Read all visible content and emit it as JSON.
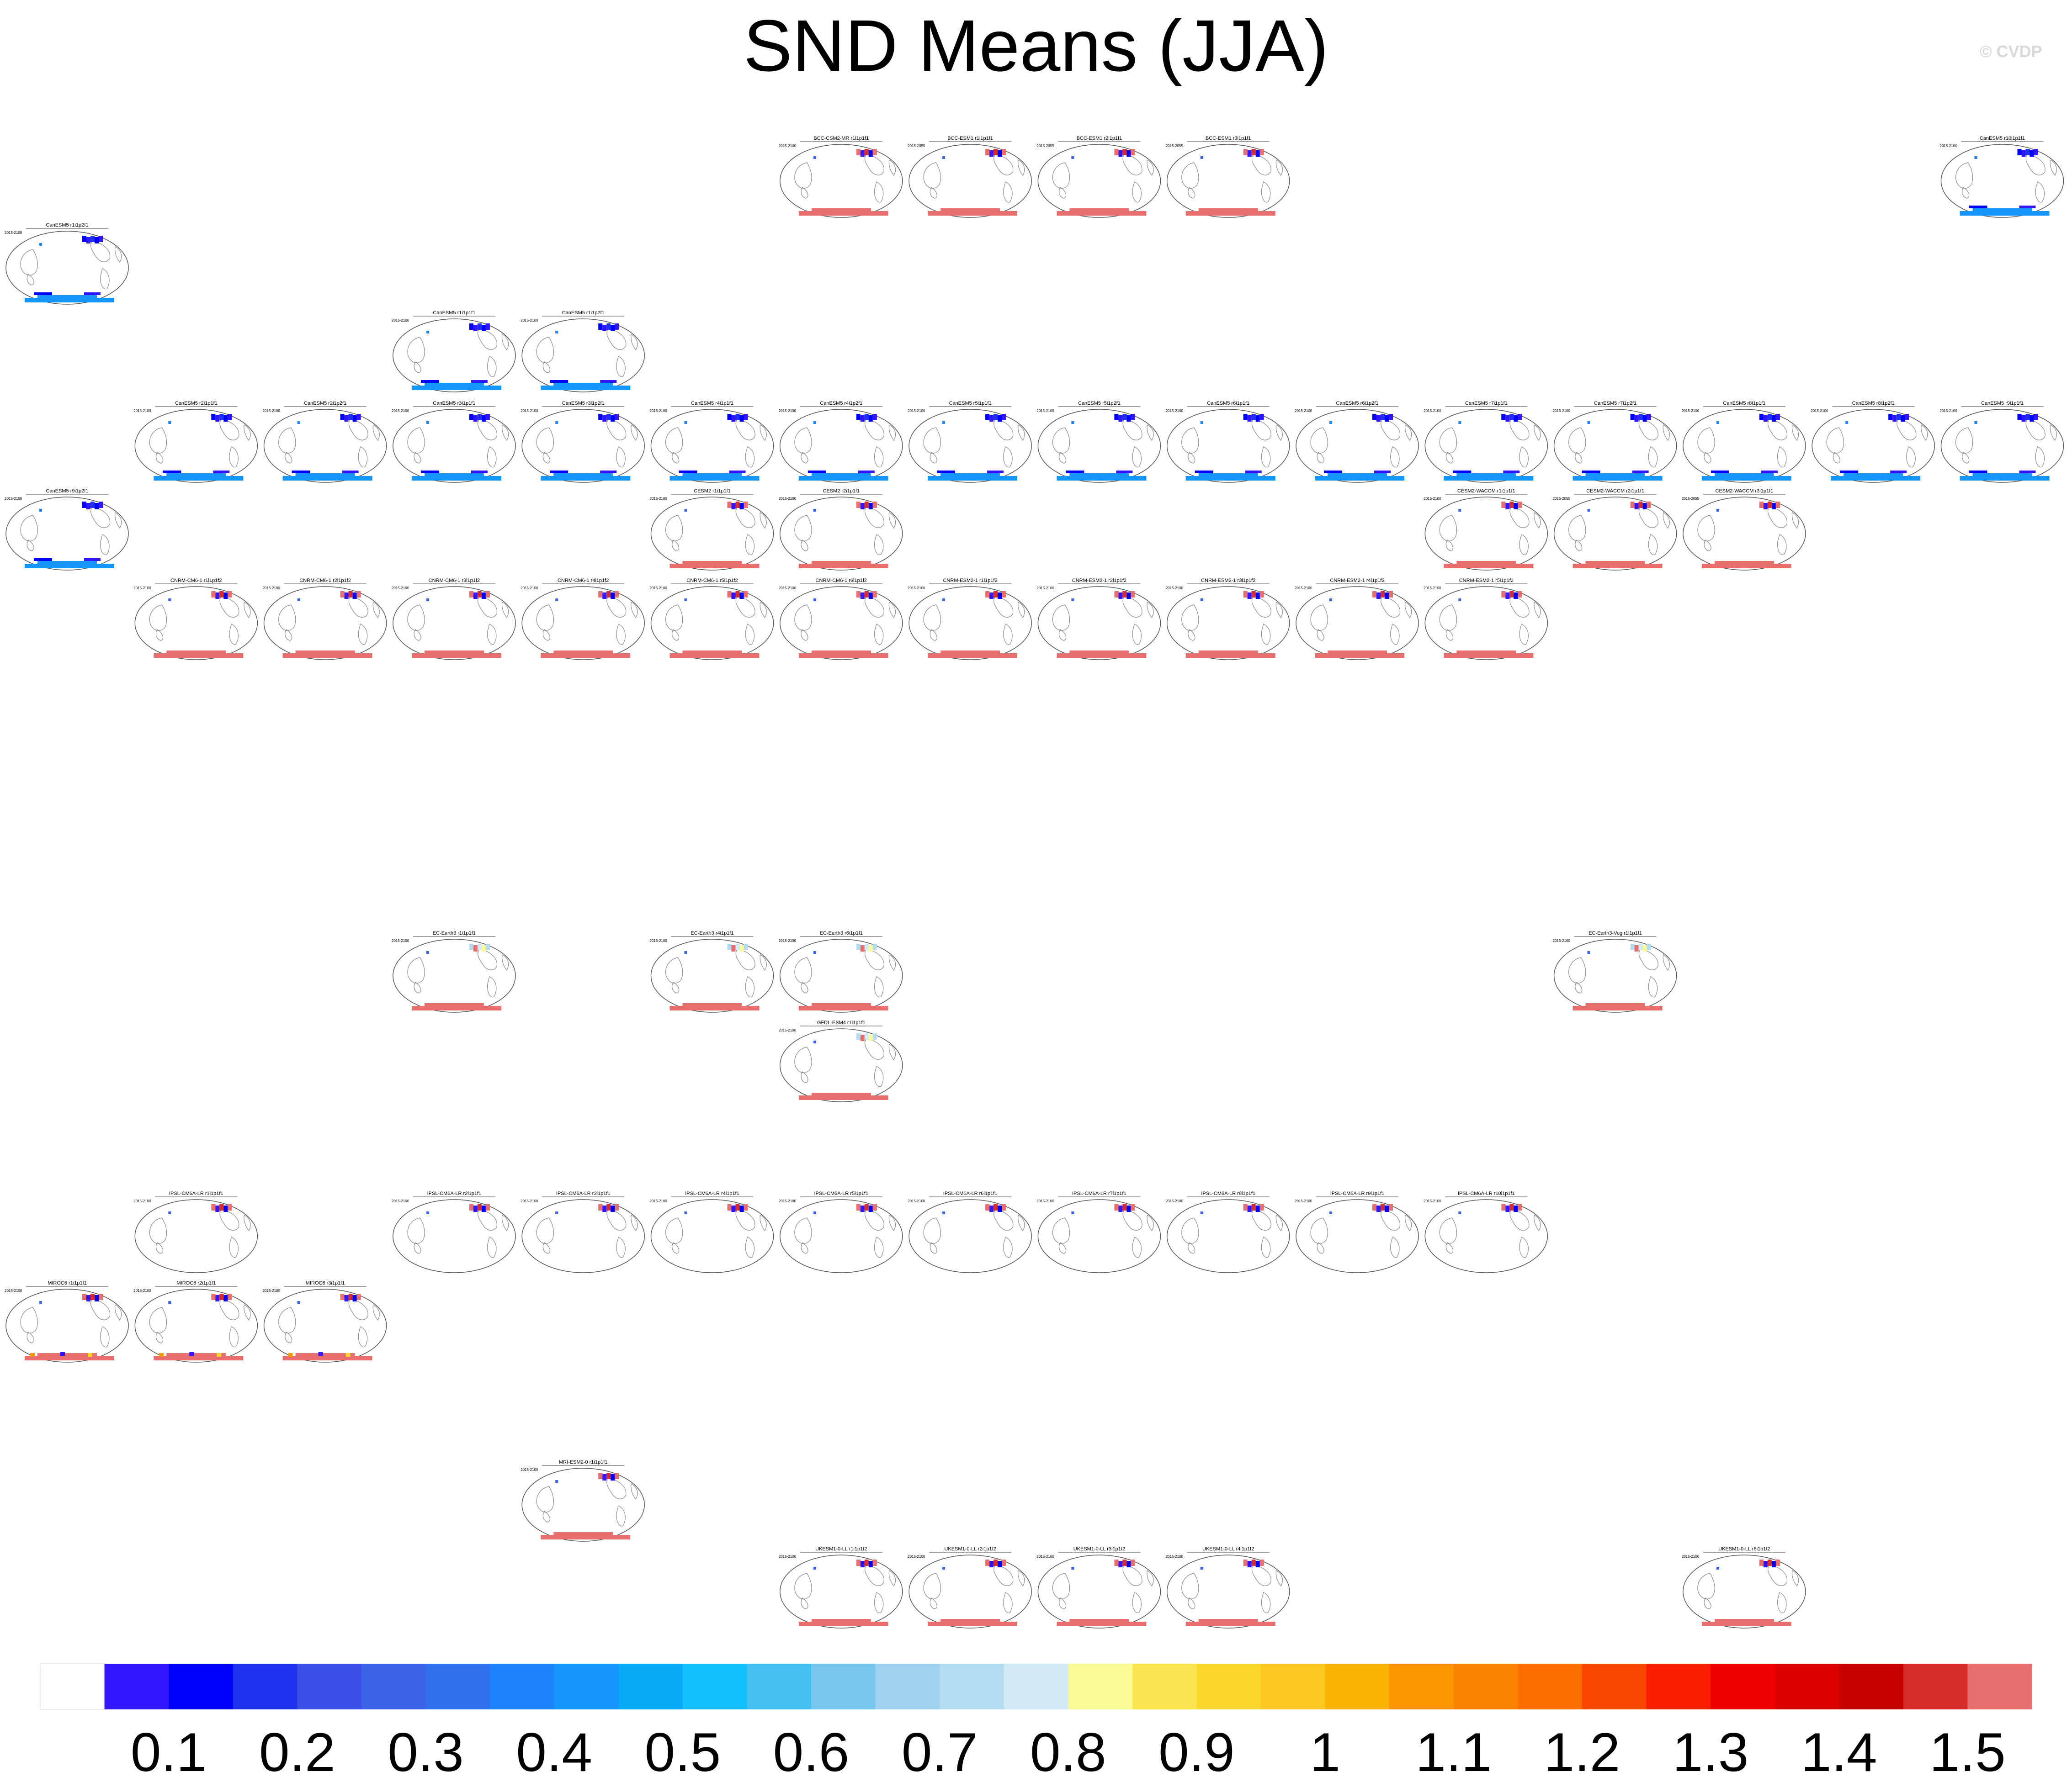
{
  "title": "SND Means (JJA)",
  "watermark": "© CVDP",
  "chart_data": [
    {
      "type": "map-panels",
      "title": "SND Means (JJA)",
      "panels": [
        {
          "name": "BCC-CSM2-MR r1i1p1f1",
          "period": "2015-2100",
          "row": 0,
          "col": 6,
          "south": "red",
          "north": "mixed"
        },
        {
          "name": "BCC-ESM1 r1i1p1f1",
          "period": "2015-2055",
          "row": 0,
          "col": 7,
          "south": "red",
          "north": "mixed"
        },
        {
          "name": "BCC-ESM1 r2i1p1f1",
          "period": "2015-2055",
          "row": 0,
          "col": 8,
          "south": "red",
          "north": "mixed"
        },
        {
          "name": "BCC-ESM1 r3i1p1f1",
          "period": "2015-2055",
          "row": 0,
          "col": 9,
          "south": "red",
          "north": "mixed"
        },
        {
          "name": "CanESM5 r10i1p1f1",
          "period": "2015-2100",
          "row": 0,
          "col": 15,
          "south": "blue",
          "north": "blue"
        },
        {
          "name": "CanESM5 r1i1p2f1",
          "period": "2015-2100",
          "row": 1,
          "col": 0,
          "south": "blue",
          "north": "blue"
        },
        {
          "name": "CanESM5 r1i1p1f1",
          "period": "2015-2100",
          "row": 2,
          "col": 3,
          "south": "blue",
          "north": "blue"
        },
        {
          "name": "CanESM5 r1i1p2f1",
          "period": "2015-2100",
          "row": 2,
          "col": 4,
          "south": "blue",
          "north": "blue"
        },
        {
          "name": "CanESM5 r2i1p1f1",
          "period": "2015-2100",
          "row": 3,
          "col": 1,
          "south": "blue",
          "north": "blue"
        },
        {
          "name": "CanESM5 r2i1p2f1",
          "period": "2015-2100",
          "row": 3,
          "col": 2,
          "south": "blue",
          "north": "blue"
        },
        {
          "name": "CanESM5 r3i1p1f1",
          "period": "2015-2100",
          "row": 3,
          "col": 3,
          "south": "blue",
          "north": "blue"
        },
        {
          "name": "CanESM5 r3i1p2f1",
          "period": "2015-2100",
          "row": 3,
          "col": 4,
          "south": "blue",
          "north": "blue"
        },
        {
          "name": "CanESM5 r4i1p1f1",
          "period": "2015-2100",
          "row": 3,
          "col": 5,
          "south": "blue",
          "north": "blue"
        },
        {
          "name": "CanESM5 r4i1p2f1",
          "period": "2015-2100",
          "row": 3,
          "col": 6,
          "south": "blue",
          "north": "blue"
        },
        {
          "name": "CanESM5 r5i1p1f1",
          "period": "2015-2100",
          "row": 3,
          "col": 7,
          "south": "blue",
          "north": "blue"
        },
        {
          "name": "CanESM5 r5i1p2f1",
          "period": "2015-2100",
          "row": 3,
          "col": 8,
          "south": "blue",
          "north": "blue"
        },
        {
          "name": "CanESM5 r6i1p1f1",
          "period": "2015-2100",
          "row": 3,
          "col": 9,
          "south": "blue",
          "north": "blue"
        },
        {
          "name": "CanESM5 r6i1p2f1",
          "period": "2015-2100",
          "row": 3,
          "col": 10,
          "south": "blue",
          "north": "blue"
        },
        {
          "name": "CanESM5 r7i1p1f1",
          "period": "2015-2100",
          "row": 3,
          "col": 11,
          "south": "blue",
          "north": "blue"
        },
        {
          "name": "CanESM5 r7i1p2f1",
          "period": "2015-2100",
          "row": 3,
          "col": 12,
          "south": "blue",
          "north": "blue"
        },
        {
          "name": "CanESM5 r8i1p1f1",
          "period": "2015-2100",
          "row": 3,
          "col": 13,
          "south": "blue",
          "north": "blue"
        },
        {
          "name": "CanESM5 r8i1p2f1",
          "period": "2015-2100",
          "row": 3,
          "col": 14,
          "south": "blue",
          "north": "blue"
        },
        {
          "name": "CanESM5 r9i1p1f1",
          "period": "2015-2100",
          "row": 3,
          "col": 15,
          "south": "blue",
          "north": "blue"
        },
        {
          "name": "CanESM5 r9i1p2f1",
          "period": "2015-2100",
          "row": 4,
          "col": 0,
          "south": "blue",
          "north": "blue"
        },
        {
          "name": "CESM2 r1i1p1f1",
          "period": "2015-2100",
          "row": 4,
          "col": 5,
          "south": "red",
          "north": "mixed"
        },
        {
          "name": "CESM2 r2i1p1f1",
          "period": "2015-2100",
          "row": 4,
          "col": 6,
          "south": "red",
          "north": "mixed"
        },
        {
          "name": "CESM2-WACCM r1i1p1f1",
          "period": "2015-2100",
          "row": 4,
          "col": 11,
          "south": "red",
          "north": "mixed"
        },
        {
          "name": "CESM2-WACCM r2i1p1f1",
          "period": "2015-2055",
          "row": 4,
          "col": 12,
          "south": "red",
          "north": "mixed"
        },
        {
          "name": "CESM2-WACCM r3i1p1f1",
          "period": "2015-2055",
          "row": 4,
          "col": 13,
          "south": "red",
          "north": "mixed"
        },
        {
          "name": "CNRM-CM6-1 r1i1p1f2",
          "period": "2015-2100",
          "row": 5,
          "col": 1,
          "south": "red",
          "north": "mixed"
        },
        {
          "name": "CNRM-CM6-1 r2i1p1f2",
          "period": "2015-2100",
          "row": 5,
          "col": 2,
          "south": "red",
          "north": "mixed"
        },
        {
          "name": "CNRM-CM6-1 r3i1p1f2",
          "period": "2015-2100",
          "row": 5,
          "col": 3,
          "south": "red",
          "north": "mixed"
        },
        {
          "name": "CNRM-CM6-1 r4i1p1f2",
          "period": "2015-2100",
          "row": 5,
          "col": 4,
          "south": "red",
          "north": "mixed"
        },
        {
          "name": "CNRM-CM6-1 r5i1p1f2",
          "period": "2015-2100",
          "row": 5,
          "col": 5,
          "south": "red",
          "north": "mixed"
        },
        {
          "name": "CNRM-CM6-1 r6i1p1f2",
          "period": "2015-2100",
          "row": 5,
          "col": 6,
          "south": "red",
          "north": "mixed"
        },
        {
          "name": "CNRM-ESM2-1 r1i1p1f2",
          "period": "2015-2100",
          "row": 5,
          "col": 7,
          "south": "red",
          "north": "mixed"
        },
        {
          "name": "CNRM-ESM2-1 r2i1p1f2",
          "period": "2015-2100",
          "row": 5,
          "col": 8,
          "south": "red",
          "north": "mixed"
        },
        {
          "name": "CNRM-ESM2-1 r3i1p1f2",
          "period": "2015-2100",
          "row": 5,
          "col": 9,
          "south": "red",
          "north": "mixed"
        },
        {
          "name": "CNRM-ESM2-1 r4i1p1f2",
          "period": "2015-2100",
          "row": 5,
          "col": 10,
          "south": "red",
          "north": "mixed"
        },
        {
          "name": "CNRM-ESM2-1 r5i1p1f2",
          "period": "2015-2100",
          "row": 5,
          "col": 11,
          "south": "red",
          "north": "mixed"
        },
        {
          "name": "EC-Earth3 r1i1p1f1",
          "period": "2015-2100",
          "row": 6,
          "col": 3,
          "south": "red",
          "north": "light"
        },
        {
          "name": "EC-Earth3 r4i1p1f1",
          "period": "2015-2100",
          "row": 6,
          "col": 5,
          "south": "red",
          "north": "light"
        },
        {
          "name": "EC-Earth3 r6i1p1f1",
          "period": "2015-2100",
          "row": 6,
          "col": 6,
          "south": "red",
          "north": "light"
        },
        {
          "name": "EC-Earth3-Veg r1i1p1f1",
          "period": "2015-2100",
          "row": 6,
          "col": 12,
          "south": "red",
          "north": "light"
        },
        {
          "name": "GFDL-ESM4 r1i1p1f1",
          "period": "2015-2100",
          "row": 7,
          "col": 6,
          "south": "red",
          "north": "light"
        },
        {
          "name": "IPSL-CM6A-LR r1i1p1f1",
          "period": "2015-2100",
          "row": 8,
          "col": 1,
          "south": "none",
          "north": "mixed"
        },
        {
          "name": "IPSL-CM6A-LR r2i1p1f1",
          "period": "2015-2100",
          "row": 8,
          "col": 3,
          "south": "none",
          "north": "mixed"
        },
        {
          "name": "IPSL-CM6A-LR r3i1p1f1",
          "period": "2015-2100",
          "row": 8,
          "col": 4,
          "south": "none",
          "north": "mixed"
        },
        {
          "name": "IPSL-CM6A-LR r4i1p1f1",
          "period": "2015-2100",
          "row": 8,
          "col": 5,
          "south": "none",
          "north": "mixed"
        },
        {
          "name": "IPSL-CM6A-LR r5i1p1f1",
          "period": "2015-2100",
          "row": 8,
          "col": 6,
          "south": "none",
          "north": "mixed"
        },
        {
          "name": "IPSL-CM6A-LR r6i1p1f1",
          "period": "2015-2100",
          "row": 8,
          "col": 7,
          "south": "none",
          "north": "mixed"
        },
        {
          "name": "IPSL-CM6A-LR r7i1p1f1",
          "period": "2015-2100",
          "row": 8,
          "col": 8,
          "south": "none",
          "north": "mixed"
        },
        {
          "name": "IPSL-CM6A-LR r8i1p1f1",
          "period": "2015-2100",
          "row": 8,
          "col": 9,
          "south": "none",
          "north": "mixed"
        },
        {
          "name": "IPSL-CM6A-LR r9i1p1f1",
          "period": "2015-2100",
          "row": 8,
          "col": 10,
          "south": "none",
          "north": "mixed"
        },
        {
          "name": "IPSL-CM6A-LR r10i1p1f1",
          "period": "2015-2100",
          "row": 8,
          "col": 11,
          "south": "none",
          "north": "mixed"
        },
        {
          "name": "MIROC6 r1i1p1f1",
          "period": "2015-2100",
          "row": 9,
          "col": 0,
          "south": "multi",
          "north": "mixed"
        },
        {
          "name": "MIROC6 r2i1p1f1",
          "period": "2015-2100",
          "row": 9,
          "col": 1,
          "south": "multi",
          "north": "mixed"
        },
        {
          "name": "MIROC6 r3i1p1f1",
          "period": "2015-2100",
          "row": 9,
          "col": 2,
          "south": "multi",
          "north": "mixed"
        },
        {
          "name": "MRI-ESM2-0 r1i1p1f1",
          "period": "2015-2100",
          "row": 10,
          "col": 4,
          "south": "red",
          "north": "mixed"
        },
        {
          "name": "UKESM1-0-LL r1i1p1f2",
          "period": "2015-2100",
          "row": 11,
          "col": 6,
          "south": "red",
          "north": "mixed"
        },
        {
          "name": "UKESM1-0-LL r2i1p1f2",
          "period": "2015-2100",
          "row": 11,
          "col": 7,
          "south": "red",
          "north": "mixed"
        },
        {
          "name": "UKESM1-0-LL r3i1p1f2",
          "period": "2015-2100",
          "row": 11,
          "col": 8,
          "south": "red",
          "north": "mixed"
        },
        {
          "name": "UKESM1-0-LL r4i1p1f2",
          "period": "2015-2100",
          "row": 11,
          "col": 9,
          "south": "red",
          "north": "mixed"
        },
        {
          "name": "UKESM1-0-LL r8i1p1f2",
          "period": "2015-2100",
          "row": 11,
          "col": 13,
          "south": "red",
          "north": "mixed"
        }
      ]
    },
    {
      "type": "colorbar",
      "levels": [
        0.05,
        0.1,
        0.15,
        0.2,
        0.25,
        0.3,
        0.35,
        0.4,
        0.45,
        0.5,
        0.55,
        0.6,
        0.65,
        0.7,
        0.75,
        0.8,
        0.85,
        0.9,
        0.95,
        1,
        1.05,
        1.1,
        1.15,
        1.2,
        1.25,
        1.3,
        1.35,
        1.4,
        1.45,
        1.5
      ],
      "colors": [
        "#ffffff",
        "#3116ff",
        "#0000ff",
        "#1e32f0",
        "#3a50e6",
        "#3c64e6",
        "#3070ea",
        "#1e82fa",
        "#1696fa",
        "#08aaf8",
        "#10c0fa",
        "#46c0f0",
        "#78c6ec",
        "#9ed2ee",
        "#b4dcf0",
        "#d2eaf6",
        "#fafa96",
        "#fae650",
        "#fad728",
        "#fac81e",
        "#fab400",
        "#fa9600",
        "#fa8200",
        "#fa6e00",
        "#fa4600",
        "#fa1e00",
        "#f00000",
        "#dc0000",
        "#c80000",
        "#d72d2d",
        "#e86e6e"
      ],
      "tick_labels": [
        "0.1",
        "0.2",
        "0.3",
        "0.4",
        "0.5",
        "0.6",
        "0.7",
        "0.8",
        "0.9",
        "1",
        "1.1",
        "1.2",
        "1.3",
        "1.4",
        "1.5"
      ]
    }
  ]
}
